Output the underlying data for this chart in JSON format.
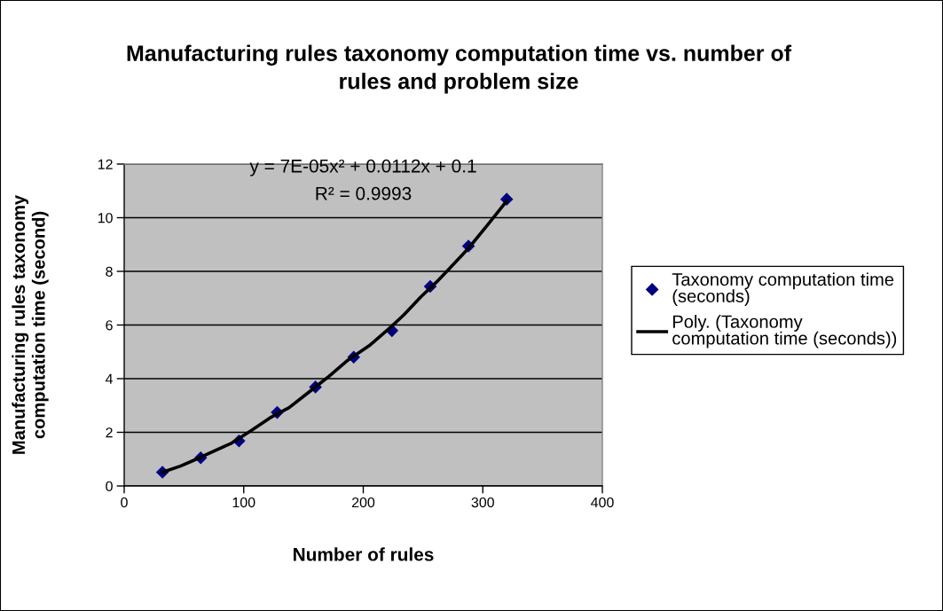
{
  "chart_data": {
    "type": "scatter",
    "title": "Manufacturing rules taxonomy computation time vs. number of\nrules and problem size",
    "xlabel": "Number of rules",
    "ylabel": "Manufacturing rules taxonomy\ncomputation time (second)",
    "x": [
      32,
      64,
      96,
      128,
      160,
      192,
      224,
      256,
      288,
      320
    ],
    "series": [
      {
        "name": "Taxonomy computation time\n(seconds)",
        "marker": "diamond",
        "color": "#000080",
        "values": [
          0.51,
          1.05,
          1.68,
          2.74,
          3.69,
          4.8,
          5.79,
          7.44,
          8.94,
          10.69
        ]
      },
      {
        "name": "Poly. (Taxonomy\ncomputation time (seconds))",
        "type": "line",
        "marker": "none",
        "line_style": "solid",
        "color": "#000000",
        "x": [
          32,
          47,
          63,
          76,
          90,
          106,
          122,
          138,
          154,
          170,
          186,
          205,
          223,
          234,
          248,
          261,
          272,
          288,
          304,
          320
        ],
        "values": [
          0.51,
          0.74,
          1.05,
          1.32,
          1.6,
          2.06,
          2.54,
          2.92,
          3.48,
          4.04,
          4.65,
          5.23,
          5.92,
          6.38,
          7.04,
          7.59,
          8.1,
          8.86,
          9.73,
          10.62
        ]
      }
    ],
    "annotations": [
      "y = 7E-05x² + 0.0112x + 0.1",
      "R² = 0.9993"
    ],
    "xlim": [
      0,
      400
    ],
    "xticks": [
      0,
      100,
      200,
      300,
      400
    ],
    "ylim": [
      0,
      12
    ],
    "yticks": [
      0,
      2,
      4,
      6,
      8,
      10,
      12
    ],
    "grid": "y",
    "legend": "right"
  }
}
